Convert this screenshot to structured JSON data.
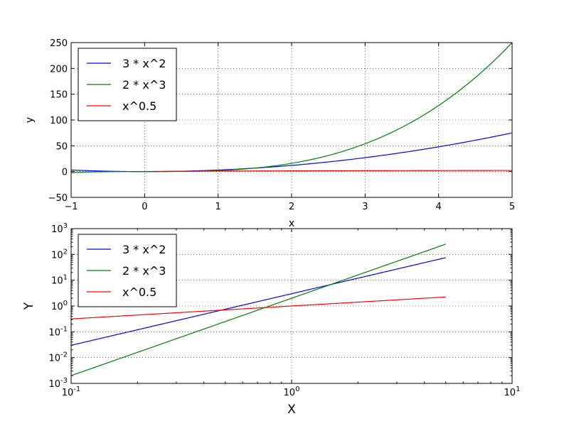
{
  "chart_data": [
    {
      "type": "line",
      "xlabel": "x",
      "ylabel": "y",
      "xlim": [
        -1,
        5
      ],
      "ylim": [
        -50,
        250
      ],
      "xscale": "linear",
      "yscale": "linear",
      "grid": true,
      "legend_position": "top-left",
      "x_ticks": [
        -1,
        0,
        1,
        2,
        3,
        4,
        5
      ],
      "x_tick_labels": [
        "−1",
        "0",
        "1",
        "2",
        "3",
        "4",
        "5"
      ],
      "y_ticks": [
        -50,
        0,
        50,
        100,
        150,
        200,
        250
      ],
      "y_tick_labels": [
        "−50",
        "0",
        "50",
        "100",
        "150",
        "200",
        "250"
      ],
      "series": [
        {
          "name": "3 * x^2",
          "color": "#0000ff",
          "formula": "3*x^2",
          "domain": [
            -1,
            5
          ],
          "x": [
            -1,
            0,
            1,
            2,
            3,
            4,
            5
          ],
          "y": [
            3,
            0,
            3,
            12,
            27,
            48,
            75
          ]
        },
        {
          "name": "2 * x^3",
          "color": "#008000",
          "formula": "2*x^3",
          "domain": [
            -1,
            5
          ],
          "x": [
            -1,
            0,
            1,
            2,
            3,
            4,
            5
          ],
          "y": [
            -2,
            0,
            2,
            16,
            54,
            128,
            250
          ]
        },
        {
          "name": "x^0.5",
          "color": "#ff0000",
          "formula": "x^0.5",
          "domain": [
            0.1,
            5
          ],
          "x": [
            0.1,
            1,
            2,
            3,
            4,
            5
          ],
          "y": [
            0.32,
            1,
            1.41,
            1.73,
            2,
            2.24
          ]
        }
      ]
    },
    {
      "type": "line",
      "xlabel": "X",
      "ylabel": "Y",
      "xlim": [
        0.1,
        10
      ],
      "ylim": [
        0.001,
        1000
      ],
      "xscale": "log",
      "yscale": "log",
      "grid": true,
      "legend_position": "top-left",
      "x_ticks": [
        0.1,
        1,
        10
      ],
      "x_tick_labels": [
        {
          "base": "10",
          "exp": "-1"
        },
        {
          "base": "10",
          "exp": "0"
        },
        {
          "base": "10",
          "exp": "1"
        }
      ],
      "y_ticks": [
        0.001,
        0.01,
        0.1,
        1,
        10,
        100,
        1000
      ],
      "y_tick_labels": [
        {
          "base": "10",
          "exp": "-3"
        },
        {
          "base": "10",
          "exp": "-2"
        },
        {
          "base": "10",
          "exp": "-1"
        },
        {
          "base": "10",
          "exp": "0"
        },
        {
          "base": "10",
          "exp": "1"
        },
        {
          "base": "10",
          "exp": "2"
        },
        {
          "base": "10",
          "exp": "3"
        }
      ],
      "series": [
        {
          "name": "3 * x^2",
          "color": "#0000ff",
          "formula": "3*x^2",
          "domain": [
            0.1,
            5
          ],
          "x": [
            0.1,
            1,
            5
          ],
          "y": [
            0.03,
            3,
            75
          ]
        },
        {
          "name": "2 * x^3",
          "color": "#008000",
          "formula": "2*x^3",
          "domain": [
            0.1,
            5
          ],
          "x": [
            0.1,
            1,
            5
          ],
          "y": [
            0.002,
            2,
            250
          ]
        },
        {
          "name": "x^0.5",
          "color": "#ff0000",
          "formula": "x^0.5",
          "domain": [
            0.1,
            5
          ],
          "x": [
            0.1,
            1,
            5
          ],
          "y": [
            0.316,
            1,
            2.236
          ]
        }
      ]
    }
  ]
}
